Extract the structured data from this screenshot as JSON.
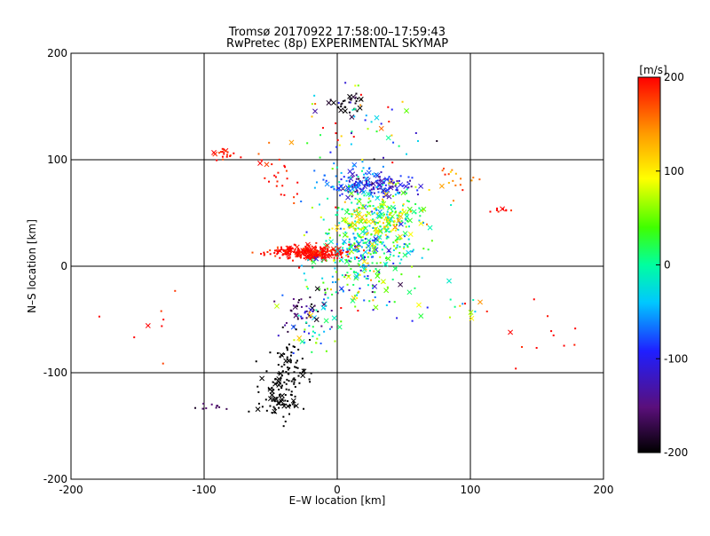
{
  "chart_data": {
    "type": "scatter",
    "title": "Tromsø 20170922 17:58:00–17:59:43",
    "subtitle": "RwPretec (8p) EXPERIMENTAL SKYMAP",
    "xlabel": "E–W location [km]",
    "ylabel": "N–S location [km]",
    "xlim": [
      -200,
      200
    ],
    "ylim": [
      -200,
      200
    ],
    "xticks": [
      -200,
      -100,
      0,
      100,
      200
    ],
    "yticks": [
      -200,
      -100,
      0,
      100,
      200
    ],
    "grid": true,
    "colorbar": {
      "label": "[m/s]",
      "min": -200,
      "max": 200,
      "ticks": [
        200,
        100,
        0,
        -100,
        -200
      ],
      "colormap": "black-purple-blue-cyan-green-yellow-orange-red"
    },
    "markers": {
      "small": "dot",
      "large": "x"
    },
    "clusters": [
      {
        "name": "north-black",
        "cx": 8,
        "cy": 153,
        "sx": 6,
        "sy": 5,
        "n": 30,
        "v": -195,
        "dv": 10
      },
      {
        "name": "north-scatter",
        "cx": 15,
        "cy": 125,
        "sx": 25,
        "sy": 22,
        "n": 60,
        "v": 0,
        "dv": 120
      },
      {
        "name": "upper-blue",
        "cx": 30,
        "cy": 76,
        "sx": 15,
        "sy": 5,
        "n": 120,
        "v": -110,
        "dv": 25
      },
      {
        "name": "upper-teal",
        "cx": 8,
        "cy": 78,
        "sx": 14,
        "sy": 9,
        "n": 70,
        "v": -60,
        "dv": 30
      },
      {
        "name": "mid-green",
        "cx": 30,
        "cy": 45,
        "sx": 20,
        "sy": 14,
        "n": 240,
        "v": 20,
        "dv": 50
      },
      {
        "name": "mid-yellow",
        "cx": 25,
        "cy": 40,
        "sx": 15,
        "sy": 8,
        "n": 80,
        "v": 100,
        "dv": 25
      },
      {
        "name": "center-cyan",
        "cx": 20,
        "cy": 15,
        "sx": 18,
        "sy": 10,
        "n": 160,
        "v": -10,
        "dv": 45
      },
      {
        "name": "red-band",
        "cx": -20,
        "cy": 13,
        "sx": 15,
        "sy": 3,
        "n": 260,
        "v": 200,
        "dv": 15
      },
      {
        "name": "below-center",
        "cx": 15,
        "cy": -15,
        "sx": 22,
        "sy": 18,
        "n": 130,
        "v": 0,
        "dv": 70
      },
      {
        "name": "left-red-upper",
        "cx": -85,
        "cy": 105,
        "sx": 5,
        "sy": 4,
        "n": 20,
        "v": 195,
        "dv": 15
      },
      {
        "name": "left-red-mid",
        "cx": -40,
        "cy": 82,
        "sx": 10,
        "sy": 12,
        "n": 25,
        "v": 190,
        "dv": 15
      },
      {
        "name": "purple-arm",
        "cx": -25,
        "cy": -40,
        "sx": 12,
        "sy": 10,
        "n": 45,
        "v": -150,
        "dv": 30
      },
      {
        "name": "mid-left-mixed",
        "cx": -20,
        "cy": -60,
        "sx": 15,
        "sy": 15,
        "n": 40,
        "v": 20,
        "dv": 90
      },
      {
        "name": "black-arm",
        "cx": -38,
        "cy": -100,
        "sx": 7,
        "sy": 14,
        "n": 90,
        "v": -200,
        "dv": 0
      },
      {
        "name": "black-lower",
        "cx": -45,
        "cy": -125,
        "sx": 8,
        "sy": 10,
        "n": 55,
        "v": -200,
        "dv": 0
      },
      {
        "name": "purple-lower",
        "cx": -95,
        "cy": -133,
        "sx": 6,
        "sy": 3,
        "n": 10,
        "v": -160,
        "dv": 15
      },
      {
        "name": "right-red",
        "cx": 125,
        "cy": 53,
        "sx": 5,
        "sy": 2,
        "n": 9,
        "v": 195,
        "dv": 10
      },
      {
        "name": "right-orange",
        "cx": 90,
        "cy": 80,
        "sx": 8,
        "sy": 8,
        "n": 18,
        "v": 140,
        "dv": 30
      },
      {
        "name": "right-teal",
        "cx": 95,
        "cy": -40,
        "sx": 10,
        "sy": 8,
        "n": 12,
        "v": 60,
        "dv": 90
      },
      {
        "name": "far-red-right",
        "cx": 150,
        "cy": -60,
        "sx": 20,
        "sy": 15,
        "n": 12,
        "v": 195,
        "dv": 10
      },
      {
        "name": "far-left",
        "cx": -140,
        "cy": -50,
        "sx": 15,
        "sy": 25,
        "n": 8,
        "v": 170,
        "dv": 60
      }
    ]
  }
}
